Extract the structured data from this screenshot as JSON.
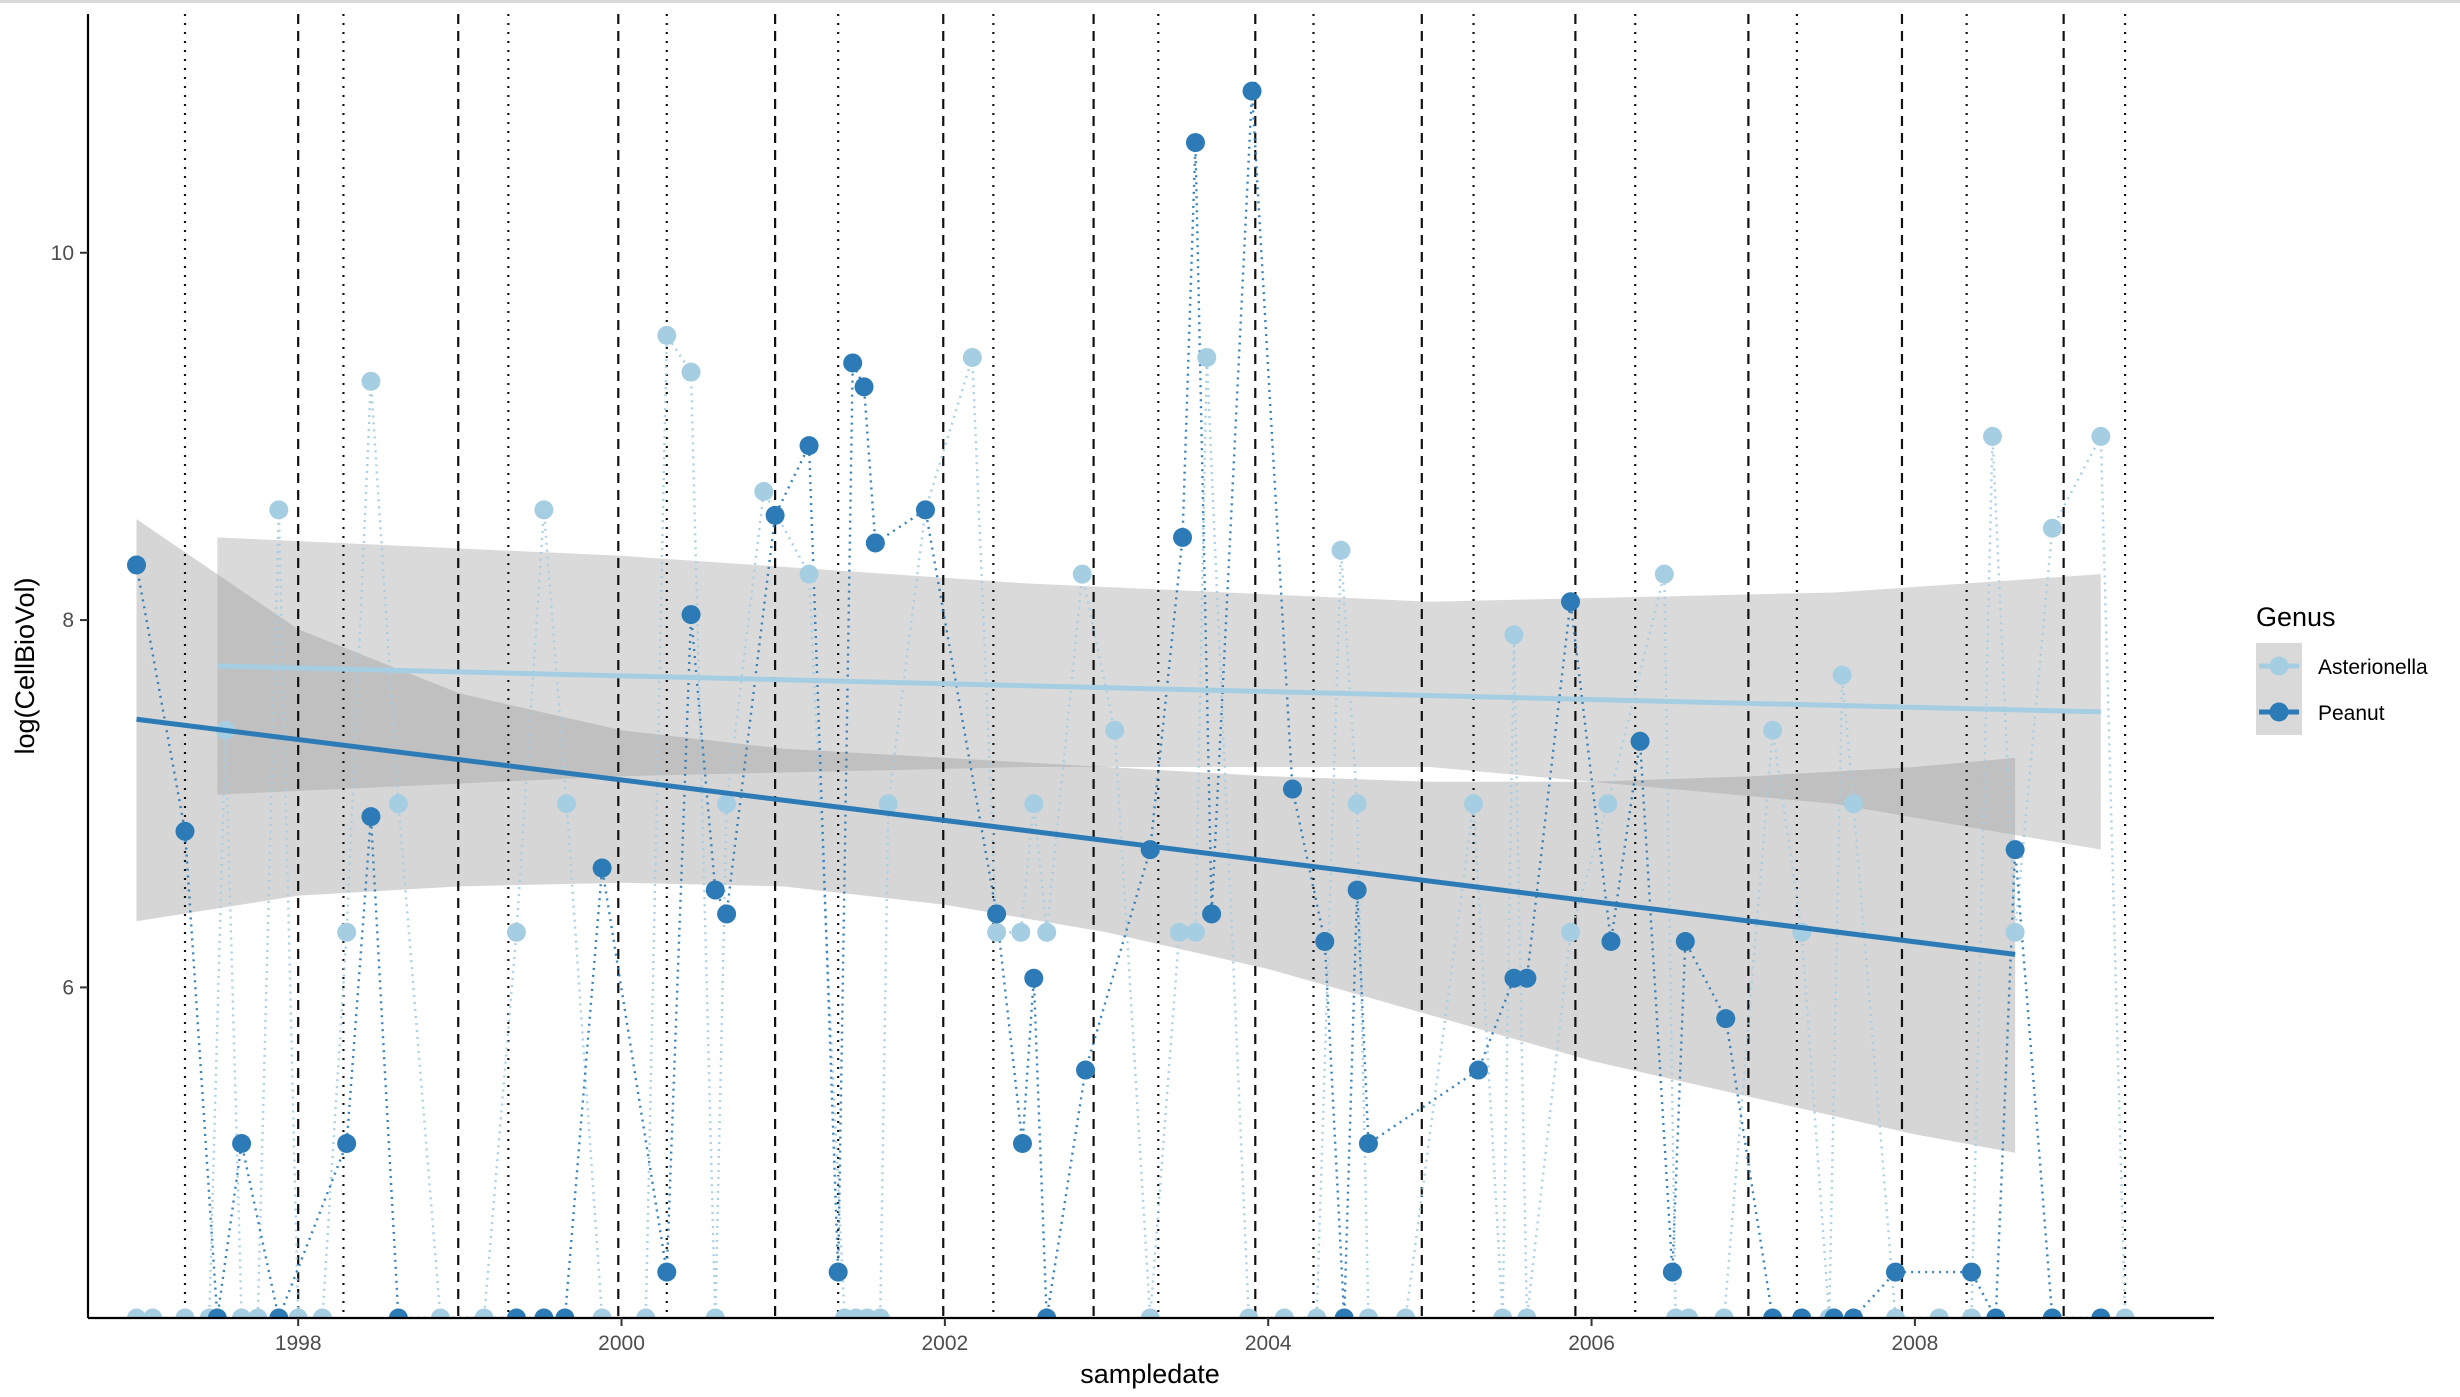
{
  "chart_data": {
    "type": "scatter",
    "xlabel": "sampledate",
    "ylabel": "log(CellBioVol)",
    "xlim": [
      1996.7,
      2009.85
    ],
    "ylim": [
      4.2,
      11.3
    ],
    "x_ticks": [
      {
        "value": 1998,
        "label": "1998"
      },
      {
        "value": 2000,
        "label": "2000"
      },
      {
        "value": 2002,
        "label": "2002"
      },
      {
        "value": 2004,
        "label": "2004"
      },
      {
        "value": 2006,
        "label": "2006"
      },
      {
        "value": 2008,
        "label": "2008"
      }
    ],
    "y_ticks": [
      {
        "value": 6,
        "label": "6"
      },
      {
        "value": 8,
        "label": "8"
      },
      {
        "value": 10,
        "label": "10"
      }
    ],
    "grid": false,
    "legend": {
      "title": "Genus",
      "placement": "right",
      "entries": [
        {
          "label": "Asterionella",
          "color": "#a6cee3"
        },
        {
          "label": "Peanut",
          "color": "#2c7bb6"
        }
      ]
    },
    "vlines_dashed": [
      1998.0,
      1998.99,
      1999.98,
      2000.95,
      2001.99,
      2002.92,
      2003.92,
      2004.95,
      2005.9,
      2006.97,
      2007.92,
      2008.92
    ],
    "vlines_dotted": [
      1997.3,
      1998.28,
      1999.3,
      2000.28,
      2001.34,
      2002.3,
      2003.32,
      2004.28,
      2005.27,
      2006.27,
      2007.27,
      2008.32,
      2009.3
    ],
    "vline_gray": 2009.95,
    "series": [
      {
        "name": "Asterionella",
        "color": "#a6cee3",
        "trend": [
          [
            1997.5,
            7.75
          ],
          [
            2009.15,
            7.5
          ]
        ],
        "band_upper": [
          [
            1997.5,
            8.45
          ],
          [
            2000.0,
            8.35
          ],
          [
            2002.5,
            8.2
          ],
          [
            2005.0,
            8.1
          ],
          [
            2007.5,
            8.15
          ],
          [
            2009.15,
            8.25
          ]
        ],
        "band_lower": [
          [
            1997.5,
            7.05
          ],
          [
            2000.0,
            7.15
          ],
          [
            2002.5,
            7.2
          ],
          [
            2005.0,
            7.2
          ],
          [
            2007.5,
            7.0
          ],
          [
            2009.15,
            6.75
          ]
        ],
        "x": [
          1997.0,
          1997.1,
          1997.3,
          1997.45,
          1997.55,
          1997.65,
          1997.75,
          1997.88,
          1998.0,
          1998.15,
          1998.3,
          1998.45,
          1998.62,
          1998.88,
          1999.15,
          1999.35,
          1999.52,
          1999.66,
          1999.88,
          2000.15,
          2000.28,
          2000.43,
          2000.58,
          2000.65,
          2000.88,
          2001.16,
          2001.38,
          2001.45,
          2001.52,
          2001.6,
          2001.65,
          2001.88,
          2002.17,
          2002.32,
          2002.47,
          2002.55,
          2002.63,
          2002.85,
          2003.05,
          2003.27,
          2003.45,
          2003.55,
          2003.62,
          2003.88,
          2004.1,
          2004.3,
          2004.45,
          2004.55,
          2004.62,
          2004.85,
          2005.27,
          2005.45,
          2005.52,
          2005.6,
          2005.87,
          2006.1,
          2006.45,
          2006.52,
          2006.6,
          2006.82,
          2007.12,
          2007.3,
          2007.47,
          2007.55,
          2007.62,
          2007.88,
          2008.15,
          2008.35,
          2008.48,
          2008.62,
          2008.85,
          2009.15,
          2009.3
        ],
        "y": [
          4.2,
          4.2,
          4.2,
          4.2,
          7.4,
          4.2,
          4.2,
          8.6,
          4.2,
          4.2,
          6.3,
          9.3,
          7.0,
          4.2,
          4.2,
          6.3,
          8.6,
          7.0,
          4.2,
          4.2,
          9.55,
          9.35,
          4.2,
          7.0,
          8.7,
          8.25,
          4.2,
          4.2,
          4.2,
          4.2,
          7.0,
          8.6,
          9.43,
          6.3,
          6.3,
          7.0,
          6.3,
          8.25,
          7.4,
          4.2,
          6.3,
          6.3,
          9.43,
          4.2,
          4.2,
          4.2,
          8.38,
          7.0,
          4.2,
          4.2,
          7.0,
          4.2,
          7.92,
          4.2,
          6.3,
          7.0,
          8.25,
          4.2,
          4.2,
          4.2,
          7.4,
          6.3,
          4.2,
          7.7,
          7.0,
          4.2,
          4.2,
          4.2,
          9.0,
          6.3,
          8.5,
          9.0,
          4.2
        ]
      },
      {
        "name": "Peanut",
        "color": "#2c7bb6",
        "trend": [
          [
            1997.0,
            7.46
          ],
          [
            2008.62,
            6.18
          ]
        ],
        "band_upper": [
          [
            1997.0,
            8.55
          ],
          [
            1998.0,
            7.95
          ],
          [
            1999.0,
            7.6
          ],
          [
            2000.0,
            7.4
          ],
          [
            2001.0,
            7.3
          ],
          [
            2002.0,
            7.25
          ],
          [
            2003.0,
            7.2
          ],
          [
            2004.0,
            7.15
          ],
          [
            2005.0,
            7.12
          ],
          [
            2006.0,
            7.12
          ],
          [
            2007.0,
            7.15
          ],
          [
            2008.0,
            7.2
          ],
          [
            2008.62,
            7.25
          ]
        ],
        "band_lower": [
          [
            1997.0,
            6.36
          ],
          [
            1998.0,
            6.5
          ],
          [
            1999.0,
            6.55
          ],
          [
            2000.0,
            6.57
          ],
          [
            2001.0,
            6.55
          ],
          [
            2002.0,
            6.45
          ],
          [
            2003.0,
            6.3
          ],
          [
            2004.0,
            6.1
          ],
          [
            2005.0,
            5.85
          ],
          [
            2006.0,
            5.6
          ],
          [
            2007.0,
            5.4
          ],
          [
            2008.0,
            5.2
          ],
          [
            2008.62,
            5.1
          ]
        ],
        "x": [
          1997.0,
          1997.3,
          1997.5,
          1997.65,
          1997.88,
          1998.3,
          1998.45,
          1998.62,
          1999.35,
          1999.52,
          1999.65,
          1999.88,
          2000.28,
          2000.43,
          2000.58,
          2000.65,
          2000.95,
          2001.16,
          2001.34,
          2001.43,
          2001.5,
          2001.57,
          2001.88,
          2002.32,
          2002.48,
          2002.55,
          2002.63,
          2002.87,
          2003.27,
          2003.47,
          2003.55,
          2003.65,
          2003.9,
          2004.15,
          2004.35,
          2004.47,
          2004.55,
          2004.62,
          2005.3,
          2005.52,
          2005.6,
          2005.87,
          2006.12,
          2006.3,
          2006.5,
          2006.58,
          2006.83,
          2007.12,
          2007.3,
          2007.5,
          2007.62,
          2007.88,
          2008.35,
          2008.5,
          2008.85,
          2008.62,
          2009.15
        ],
        "y": [
          8.3,
          6.85,
          4.2,
          5.15,
          4.2,
          5.15,
          6.93,
          4.2,
          4.2,
          4.2,
          4.2,
          6.65,
          4.45,
          8.03,
          6.53,
          6.4,
          8.57,
          8.95,
          4.45,
          9.4,
          9.27,
          8.42,
          8.6,
          6.4,
          5.15,
          6.05,
          4.2,
          5.55,
          6.75,
          8.45,
          10.6,
          6.4,
          10.88,
          7.08,
          6.25,
          4.2,
          6.53,
          5.15,
          5.55,
          6.05,
          6.05,
          8.1,
          6.25,
          7.34,
          4.45,
          6.25,
          5.83,
          4.2,
          4.2,
          4.2,
          4.2,
          4.45,
          4.45,
          4.2,
          4.2,
          6.75,
          4.2
        ]
      }
    ]
  }
}
